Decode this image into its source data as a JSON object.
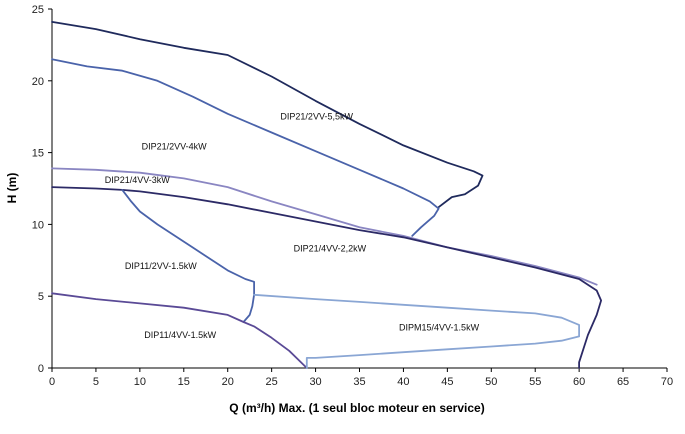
{
  "chart_data": {
    "type": "line",
    "xlabel": "Q (m³/h) Max. (1 seul bloc moteur en service)",
    "ylabel": "H (m)",
    "xlim": [
      0,
      70
    ],
    "ylim": [
      0,
      25
    ],
    "x_ticks": [
      0,
      5,
      10,
      15,
      20,
      25,
      30,
      35,
      40,
      45,
      50,
      55,
      60,
      65,
      70
    ],
    "y_ticks": [
      0,
      5,
      10,
      15,
      20,
      25
    ],
    "grid": false,
    "colors": {
      "navy": "#1f2a5c",
      "blue": "#4a63aa",
      "lavender": "#8a86c2",
      "purple": "#5a4a96",
      "lightblue": "#8aa6d4"
    },
    "series": [
      {
        "name": "DIP21/2VV-5,5kW",
        "color": "#1f2a5c",
        "points": [
          [
            0,
            24.1
          ],
          [
            5,
            23.6
          ],
          [
            10,
            22.9
          ],
          [
            15,
            22.3
          ],
          [
            20,
            21.8
          ],
          [
            25,
            20.3
          ],
          [
            30,
            18.6
          ],
          [
            35,
            17.0
          ],
          [
            40,
            15.5
          ],
          [
            45,
            14.3
          ],
          [
            48,
            13.7
          ],
          [
            49,
            13.4
          ],
          [
            48.5,
            12.7
          ],
          [
            47,
            12.1
          ],
          [
            45.5,
            11.9
          ],
          [
            44,
            11.2
          ]
        ]
      },
      {
        "name": "DIP21/2VV-4kW",
        "color": "#4a63aa",
        "points": [
          [
            0,
            21.5
          ],
          [
            4,
            21.0
          ],
          [
            8,
            20.7
          ],
          [
            12,
            20.0
          ],
          [
            16,
            18.9
          ],
          [
            20,
            17.7
          ],
          [
            25,
            16.4
          ],
          [
            30,
            15.1
          ],
          [
            35,
            13.8
          ],
          [
            40,
            12.5
          ],
          [
            43,
            11.6
          ],
          [
            44,
            11.1
          ],
          [
            43.5,
            10.6
          ],
          [
            42,
            9.8
          ],
          [
            41,
            9.2
          ]
        ]
      },
      {
        "name": "DIP21/4VV-3kW",
        "color": "#8a86c2",
        "points": [
          [
            0,
            13.9
          ],
          [
            5,
            13.8
          ],
          [
            10,
            13.6
          ],
          [
            15,
            13.2
          ],
          [
            20,
            12.6
          ],
          [
            25,
            11.6
          ],
          [
            30,
            10.7
          ],
          [
            35,
            9.8
          ],
          [
            40,
            9.2
          ],
          [
            45,
            8.4
          ],
          [
            50,
            7.8
          ],
          [
            55,
            7.1
          ],
          [
            60,
            6.3
          ],
          [
            62,
            5.8
          ]
        ]
      },
      {
        "name": "DIP21/4VV-2,2kW",
        "color": "#2c2a66",
        "points": [
          [
            0,
            12.6
          ],
          [
            5,
            12.5
          ],
          [
            8,
            12.4
          ],
          [
            10,
            12.3
          ],
          [
            15,
            11.9
          ],
          [
            20,
            11.4
          ],
          [
            25,
            10.8
          ],
          [
            30,
            10.2
          ],
          [
            35,
            9.6
          ],
          [
            40,
            9.1
          ],
          [
            45,
            8.4
          ],
          [
            50,
            7.7
          ],
          [
            55,
            7.0
          ],
          [
            60,
            6.2
          ],
          [
            62,
            5.4
          ],
          [
            62.5,
            4.7
          ],
          [
            62,
            3.7
          ],
          [
            61,
            2.3
          ],
          [
            60,
            0.4
          ],
          [
            60,
            0
          ]
        ]
      },
      {
        "name": "DIP11/2VV-1.5kW",
        "color": "#4a63aa",
        "points": [
          [
            8,
            12.4
          ],
          [
            9,
            11.6
          ],
          [
            10,
            10.9
          ],
          [
            12,
            10.0
          ],
          [
            14,
            9.2
          ],
          [
            16,
            8.4
          ],
          [
            18,
            7.6
          ],
          [
            20,
            6.8
          ],
          [
            22,
            6.2
          ],
          [
            23,
            6.0
          ],
          [
            23,
            5.1
          ],
          [
            22.8,
            4.3
          ],
          [
            22.5,
            3.7
          ],
          [
            21.8,
            3.2
          ]
        ]
      },
      {
        "name": "DIP11/4VV-1.5kW",
        "color": "#5a4a96",
        "points": [
          [
            0,
            5.2
          ],
          [
            5,
            4.8
          ],
          [
            10,
            4.5
          ],
          [
            15,
            4.2
          ],
          [
            20,
            3.7
          ],
          [
            21.8,
            3.2
          ],
          [
            23,
            2.9
          ],
          [
            25,
            2.1
          ],
          [
            27,
            1.2
          ],
          [
            28,
            0.6
          ],
          [
            29,
            0
          ]
        ]
      },
      {
        "name": "DIPM15/4VV-1.5kW",
        "color": "#8aa6d4",
        "points": [
          [
            23,
            5.1
          ],
          [
            30,
            4.8
          ],
          [
            35,
            4.6
          ],
          [
            40,
            4.4
          ],
          [
            45,
            4.2
          ],
          [
            50,
            4.0
          ],
          [
            55,
            3.8
          ],
          [
            58,
            3.5
          ],
          [
            60,
            3.0
          ],
          [
            60,
            2.2
          ],
          [
            58,
            1.9
          ],
          [
            55,
            1.7
          ],
          [
            50,
            1.5
          ],
          [
            45,
            1.3
          ],
          [
            40,
            1.1
          ],
          [
            35,
            0.9
          ],
          [
            30,
            0.7
          ],
          [
            29,
            0.7
          ],
          [
            29,
            0
          ]
        ]
      }
    ],
    "annotations": [
      {
        "text": "DIP21/2VV-5,5kW",
        "x": 26,
        "y": 17.3
      },
      {
        "text": "DIP21/2VV-4kW",
        "x": 10.2,
        "y": 15.2
      },
      {
        "text": "DIP21/4VV-3kW",
        "x": 6,
        "y": 12.9
      },
      {
        "text": "DIP21/4VV-2,2kW",
        "x": 27.5,
        "y": 8.1
      },
      {
        "text": "DIP11/2VV-1.5kW",
        "x": 8.3,
        "y": 6.9
      },
      {
        "text": "DIP11/4VV-1.5kW",
        "x": 10.5,
        "y": 2.1
      },
      {
        "text": "DIPM15/4VV-1.5kW",
        "x": 39.5,
        "y": 2.6
      }
    ]
  }
}
